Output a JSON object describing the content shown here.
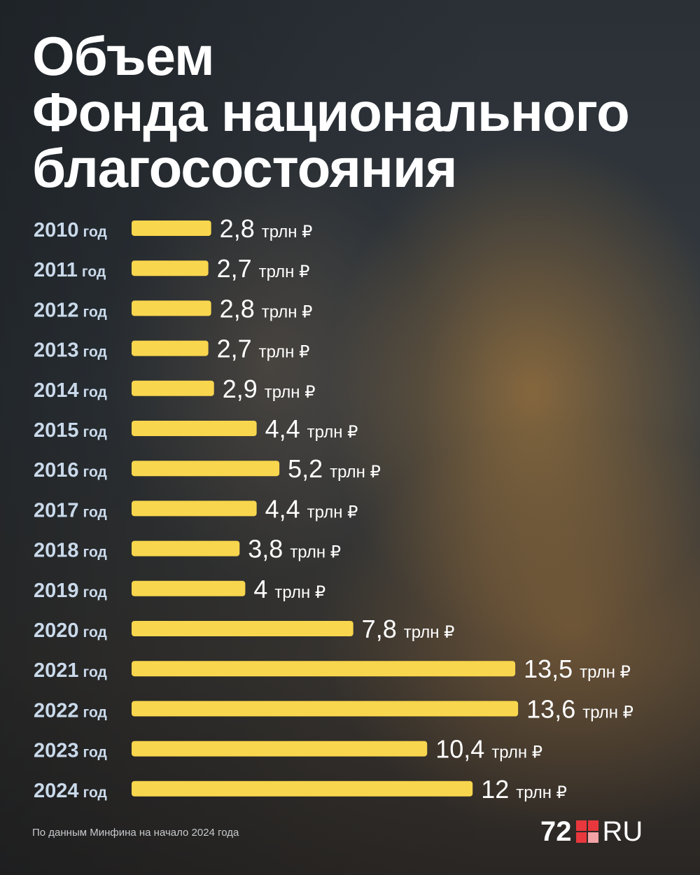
{
  "title": [
    "Объем",
    "Фонда национального",
    "благосостояния"
  ],
  "footer_note": "По данным Минфина на начало 2024 года",
  "logo": {
    "number": "72",
    "suffix": "RU"
  },
  "colors": {
    "bar": "#f8d64e",
    "year_label": "#c9d9ea",
    "value_text": "#ffffff"
  },
  "chart_data": {
    "type": "bar",
    "orientation": "horizontal",
    "categories": [
      "2010",
      "2011",
      "2012",
      "2013",
      "2014",
      "2015",
      "2016",
      "2017",
      "2018",
      "2019",
      "2020",
      "2021",
      "2022",
      "2023",
      "2024"
    ],
    "category_suffix": "год",
    "values": [
      2.8,
      2.7,
      2.8,
      2.7,
      2.9,
      4.4,
      5.2,
      4.4,
      3.8,
      4,
      7.8,
      13.5,
      13.6,
      10.4,
      12
    ],
    "value_labels": [
      "2,8",
      "2,7",
      "2,8",
      "2,7",
      "2,9",
      "4,4",
      "5,2",
      "4,4",
      "3,8",
      "4",
      "7,8",
      "13,5",
      "13,6",
      "10,4",
      "12"
    ],
    "unit": "трлн ₽",
    "title": "Объем Фонда национального благосостояния",
    "xlabel": "",
    "ylabel": "",
    "grid": false
  }
}
